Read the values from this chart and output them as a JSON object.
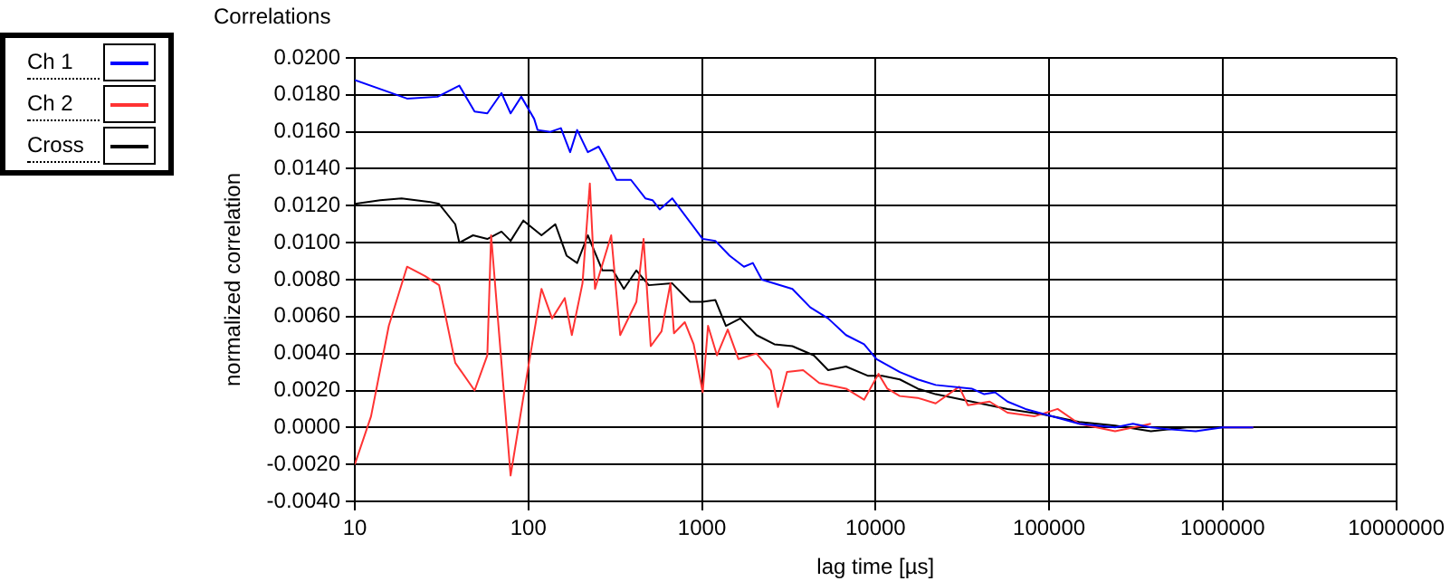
{
  "chart_data": {
    "type": "line",
    "title": "Correlations",
    "xlabel": "lag time [µs]",
    "ylabel": "normalized correlation",
    "series": [
      {
        "name": "Ch 1",
        "color": "#0000ff",
        "x": [
          10,
          20,
          30,
          40,
          49,
          58,
          70,
          79,
          91,
          108,
          113,
          134,
          154,
          174,
          191,
          220,
          254,
          279,
          322,
          390,
          472,
          519,
          571,
          674,
          1010,
          1194,
          1443,
          1746,
          1965,
          2213,
          3318,
          4208,
          5334,
          6760,
          8590,
          10140,
          13800,
          17500,
          22200,
          35800,
          42300,
          48800,
          57600,
          73100,
          104000,
          149000,
          240000,
          304000,
          386000,
          490000,
          700000,
          1000000,
          1260000,
          1500000
        ],
        "values": [
          0.0188,
          0.0178,
          0.0179,
          0.0185,
          0.0171,
          0.017,
          0.0181,
          0.017,
          0.0179,
          0.0167,
          0.0161,
          0.016,
          0.0162,
          0.0149,
          0.0161,
          0.0149,
          0.0152,
          0.0145,
          0.0134,
          0.0134,
          0.0124,
          0.0123,
          0.0118,
          0.0124,
          0.0102,
          0.0101,
          0.0093,
          0.0087,
          0.0089,
          0.008,
          0.0075,
          0.0065,
          0.0059,
          0.005,
          0.0045,
          0.0037,
          0.003,
          0.0026,
          0.0023,
          0.0021,
          0.0018,
          0.0019,
          0.0014,
          0.001,
          0.0006,
          0.0002,
          0,
          0.0002,
          0,
          -0.0001,
          -0.0002,
          0,
          0,
          0
        ]
      },
      {
        "name": "Ch 2",
        "color": "#ff3333",
        "x": [
          10,
          12.4,
          15.7,
          20,
          25.3,
          30.6,
          37.9,
          49,
          58,
          61,
          79,
          100,
          119,
          137,
          162,
          178,
          205,
          226,
          242,
          300,
          338,
          419,
          461,
          507,
          585,
          658,
          690,
          796,
          896,
          1010,
          1084,
          1221,
          1408,
          1624,
          2061,
          2493,
          2742,
          3090,
          3827,
          4742,
          6760,
          8590,
          10400,
          11700,
          13800,
          17500,
          22200,
          30300,
          34100,
          45400,
          57600,
          82200,
          112000,
          149000,
          240000,
          386000,
          621000,
          1000000,
          1500000
        ],
        "values": [
          -0.002,
          0.0006,
          0.0055,
          0.0087,
          0.0082,
          0.0077,
          0.0035,
          0.002,
          0.0039,
          0.0104,
          -0.0026,
          0.0033,
          0.0075,
          0.0059,
          0.007,
          0.005,
          0.0078,
          0.0132,
          0.0075,
          0.0104,
          0.005,
          0.0068,
          0.0102,
          0.0044,
          0.0052,
          0.0078,
          0.0051,
          0.0057,
          0.0045,
          0.0019,
          0.0055,
          0.0039,
          0.0053,
          0.0037,
          0.004,
          0.0031,
          0.0011,
          0.003,
          0.0031,
          0.0024,
          0.0021,
          0.0015,
          0.0029,
          0.0021,
          0.0017,
          0.0016,
          0.0013,
          0.0022,
          0.0012,
          0.0014,
          0.0008,
          0.0006,
          0.001,
          0.0002,
          -0.0002,
          0.0002,
          null,
          0,
          0
        ]
      },
      {
        "name": "Cross",
        "color": "#000000",
        "x": [
          10,
          14,
          18.6,
          27.2,
          30.6,
          37.9,
          40,
          48,
          58,
          70,
          79,
          93.5,
          119,
          143,
          166,
          191,
          220,
          267,
          307,
          355,
          419,
          494,
          674,
          855,
          1010,
          1194,
          1374,
          1664,
          2061,
          2615,
          3318,
          4415,
          5334,
          6760,
          9010,
          10900,
          13800,
          17500,
          22200,
          35800,
          57600,
          92700,
          149000,
          240000,
          386000,
          621000,
          1000000,
          1500000
        ],
        "values": [
          0.0121,
          0.0123,
          0.0124,
          0.0122,
          0.0121,
          0.011,
          0.01,
          0.0104,
          0.0102,
          0.0106,
          0.0101,
          0.0112,
          0.0104,
          0.011,
          0.0093,
          0.0089,
          0.0104,
          0.0085,
          0.0085,
          0.0075,
          0.0085,
          0.0077,
          0.0078,
          0.0068,
          0.0068,
          0.0069,
          0.0055,
          0.0059,
          0.005,
          0.0045,
          0.0044,
          0.0039,
          0.0031,
          0.0033,
          0.0028,
          0.0028,
          0.0026,
          0.0021,
          0.0018,
          0.0014,
          0.001,
          0.0007,
          0.0003,
          0.0001,
          -0.0002,
          0,
          0,
          0
        ]
      }
    ],
    "xlim": [
      10,
      10000000
    ],
    "xticks": [
      10,
      100,
      1000,
      10000,
      100000,
      1000000,
      10000000
    ],
    "ylim": [
      -0.004,
      0.02
    ],
    "yticks": [
      {
        "value": -0.004,
        "label": "-0.0040"
      },
      {
        "value": -0.002,
        "label": "-0.0020"
      },
      {
        "value": 0,
        "label": "0.0000"
      },
      {
        "value": 0.002,
        "label": "0.0020"
      },
      {
        "value": 0.004,
        "label": "0.0040"
      },
      {
        "value": 0.006,
        "label": "0.0060"
      },
      {
        "value": 0.008,
        "label": "0.0080"
      },
      {
        "value": 0.01,
        "label": "0.0100"
      },
      {
        "value": 0.012,
        "label": "0.0120"
      },
      {
        "value": 0.014,
        "label": "0.0140"
      },
      {
        "value": 0.016,
        "label": "0.0160"
      },
      {
        "value": 0.018,
        "label": "0.0180"
      },
      {
        "value": 0.02,
        "label": "0.0200"
      }
    ],
    "log": "x",
    "grid": true,
    "legend": "top left",
    "marker": "none",
    "line_style": "solid"
  }
}
